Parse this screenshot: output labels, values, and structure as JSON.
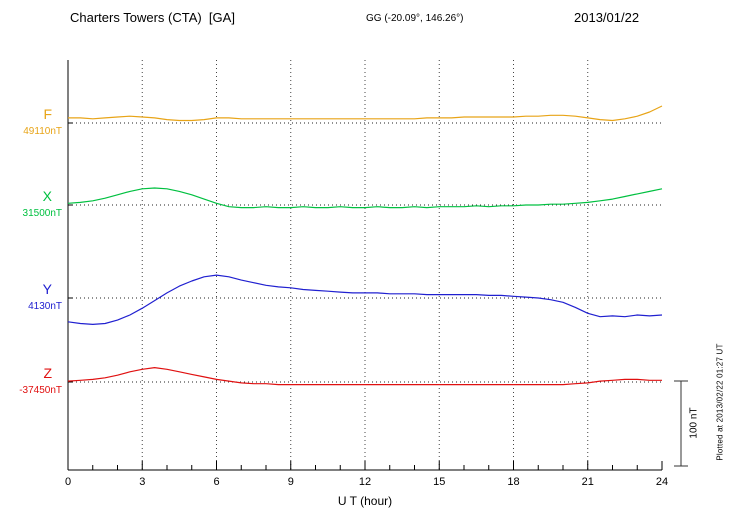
{
  "header": {
    "station": "Charters Towers (CTA)  [GA]",
    "coords": "GG (-20.09°, 146.26°)",
    "date": "2013/01/22"
  },
  "xaxis": {
    "label": "U T (hour)",
    "ticks": [
      "0",
      "3",
      "6",
      "9",
      "12",
      "15",
      "18",
      "21",
      "24"
    ]
  },
  "scale_bar_label": "100 nT",
  "plotted_at": "Plotted at 2013/02/22 01:27 UT",
  "chart_data": {
    "type": "line",
    "title": "Charters Towers (CTA) [GA] magnetogram 2013/01/22",
    "xlabel": "U T (hour)",
    "x_range": [
      0,
      24
    ],
    "scale_reference_nT": 100,
    "x_hours": [
      0,
      0.5,
      1,
      1.5,
      2,
      2.5,
      3,
      3.5,
      4,
      4.5,
      5,
      5.5,
      6,
      6.5,
      7,
      7.5,
      8,
      8.5,
      9,
      9.5,
      10,
      10.5,
      11,
      11.5,
      12,
      12.5,
      13,
      13.5,
      14,
      14.5,
      15,
      15.5,
      16,
      16.5,
      17,
      17.5,
      18,
      18.5,
      19,
      19.5,
      20,
      20.5,
      21,
      21.5,
      22,
      22.5,
      23,
      23.5,
      24
    ],
    "series": [
      {
        "name": "F",
        "baseline_nT": 49110,
        "baseline_label": "49110nT",
        "color": "#e8a417",
        "delta_nT": [
          6,
          6,
          5,
          6,
          7,
          8,
          7,
          6,
          4,
          3,
          3,
          4,
          6,
          6,
          5,
          5,
          5,
          5,
          5,
          5,
          5,
          5,
          5,
          5,
          5,
          5,
          5,
          5,
          5,
          6,
          6,
          6,
          7,
          7,
          7,
          7,
          7,
          8,
          8,
          9,
          9,
          8,
          6,
          4,
          3,
          5,
          8,
          13,
          20
        ]
      },
      {
        "name": "X",
        "baseline_nT": 31500,
        "baseline_label": "31500nT",
        "color": "#00c040",
        "delta_nT": [
          2,
          3,
          5,
          8,
          12,
          16,
          19,
          20,
          19,
          16,
          12,
          7,
          2,
          -2,
          -3,
          -3,
          -2,
          -3,
          -3,
          -2,
          -3,
          -3,
          -2,
          -3,
          -3,
          -2,
          -3,
          -3,
          -2,
          -3,
          -2,
          -2,
          -2,
          -1,
          -2,
          -1,
          -1,
          0,
          0,
          1,
          1,
          2,
          3,
          5,
          7,
          10,
          13,
          16,
          19
        ]
      },
      {
        "name": "Y",
        "baseline_nT": 4130,
        "baseline_label": "4130nT",
        "color": "#2020d0",
        "delta_nT": [
          -28,
          -30,
          -31,
          -30,
          -26,
          -20,
          -12,
          -3,
          6,
          14,
          20,
          25,
          27,
          25,
          21,
          18,
          15,
          13,
          12,
          10,
          9,
          8,
          7,
          6,
          6,
          6,
          5,
          5,
          5,
          4,
          4,
          4,
          4,
          4,
          3,
          3,
          2,
          1,
          0,
          -2,
          -5,
          -11,
          -18,
          -22,
          -21,
          -22,
          -20,
          -21,
          -20
        ]
      },
      {
        "name": "Z",
        "baseline_nT": -37450,
        "baseline_label": "-37450nT",
        "color": "#e01010",
        "delta_nT": [
          1,
          2,
          3,
          5,
          8,
          12,
          15,
          17,
          15,
          12,
          9,
          6,
          3,
          1,
          -1,
          -2,
          -2,
          -3,
          -3,
          -3,
          -3,
          -3,
          -3,
          -3,
          -3,
          -3,
          -3,
          -3,
          -3,
          -3,
          -3,
          -3,
          -3,
          -3,
          -3,
          -3,
          -3,
          -3,
          -3,
          -3,
          -3,
          -2,
          -1,
          1,
          2,
          3,
          3,
          2,
          2
        ]
      }
    ]
  }
}
